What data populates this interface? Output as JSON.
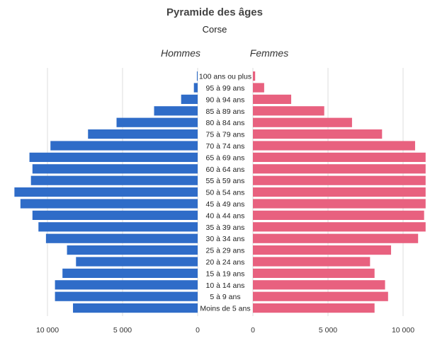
{
  "title": "Pyramide des âges",
  "subtitle": "Corse",
  "left_label": "Hommes",
  "right_label": "Femmes",
  "colors": {
    "men": "#2f6cc8",
    "women": "#e8617f",
    "grid": "#dddddd"
  },
  "chart_data": {
    "type": "bar",
    "orientation": "horizontal-pyramid",
    "categories": [
      "100 ans ou plus",
      "95 à 99 ans",
      "90 à 94 ans",
      "85 à 89 ans",
      "80 à 84 ans",
      "75 à 79 ans",
      "70 à 74 ans",
      "65 à 69 ans",
      "60 à 64 ans",
      "55 à 59 ans",
      "50 à 54 ans",
      "45 à 49 ans",
      "40 à 44 ans",
      "35 à 39 ans",
      "30 à 34 ans",
      "25 à 29 ans",
      "20 à 24 ans",
      "15 à 19 ans",
      "10 à 14 ans",
      "5 à 9 ans",
      "Moins de 5 ans"
    ],
    "series": [
      {
        "name": "Hommes",
        "values": [
          50,
          250,
          1100,
          2900,
          5400,
          7300,
          9800,
          11200,
          11000,
          11100,
          12200,
          11800,
          11000,
          10600,
          10100,
          8700,
          8100,
          9000,
          9500,
          9500,
          8300
        ]
      },
      {
        "name": "Femmes",
        "values": [
          150,
          750,
          2550,
          4750,
          6600,
          8600,
          10800,
          11500,
          11500,
          11500,
          11500,
          11500,
          11400,
          11500,
          11000,
          9200,
          7800,
          8100,
          8800,
          9000,
          8100
        ]
      }
    ],
    "xlim": [
      0,
      11500
    ],
    "xticks": [
      0,
      5000,
      10000
    ],
    "xtick_labels_left": [
      "0",
      "5 000",
      "10 000"
    ],
    "xtick_labels_right": [
      "0",
      "5 000",
      "10 000"
    ],
    "grid": true
  }
}
